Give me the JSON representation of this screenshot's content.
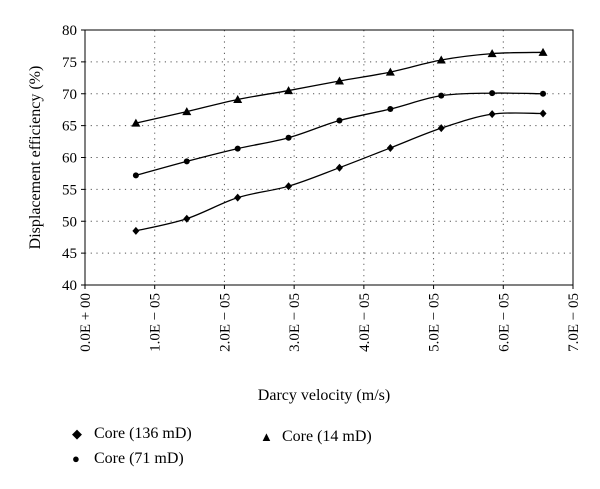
{
  "chart_data": {
    "type": "line",
    "title": "",
    "xlabel": "Darcy velocity (m/s)",
    "ylabel": "Displacement efficiency (%)",
    "xlim": [
      0,
      7e-05
    ],
    "ylim": [
      40,
      80
    ],
    "x_ticks": [
      "0.0E + 00",
      "1.0E − 05",
      "2.0E − 05",
      "3.0E − 05",
      "4.0E − 05",
      "5.0E − 05",
      "6.0E − 05",
      "7.0E − 05"
    ],
    "y_ticks": [
      "40",
      "45",
      "50",
      "55",
      "60",
      "65",
      "70",
      "75",
      "80"
    ],
    "grid": "horizontal dotted",
    "legend_position": "bottom",
    "series": [
      {
        "name": "Core (136 mD)",
        "marker": "diamond",
        "x": [
          7.3e-06,
          1.46e-05,
          2.19e-05,
          2.92e-05,
          3.65e-05,
          4.38e-05,
          5.11e-05,
          5.84e-05,
          6.57e-05
        ],
        "values": [
          48.5,
          50.4,
          53.7,
          55.5,
          58.4,
          61.5,
          64.6,
          66.8,
          66.9
        ]
      },
      {
        "name": "Core (71 mD)",
        "marker": "circle",
        "x": [
          7.3e-06,
          1.46e-05,
          2.19e-05,
          2.92e-05,
          3.65e-05,
          4.38e-05,
          5.11e-05,
          5.84e-05,
          6.57e-05
        ],
        "values": [
          57.2,
          59.4,
          61.4,
          63.1,
          65.8,
          67.6,
          69.7,
          70.1,
          70.0
        ]
      },
      {
        "name": "Core (14 mD)",
        "marker": "triangle",
        "x": [
          7.3e-06,
          1.46e-05,
          2.19e-05,
          2.92e-05,
          3.65e-05,
          4.38e-05,
          5.11e-05,
          5.84e-05,
          6.57e-05
        ],
        "values": [
          65.4,
          67.2,
          69.1,
          70.5,
          72.0,
          73.4,
          75.3,
          76.3,
          76.5
        ]
      }
    ]
  },
  "legend": {
    "items": [
      {
        "label": "Core (136 mD)",
        "marker": "◆"
      },
      {
        "label": "Core (71 mD)",
        "marker": "●"
      },
      {
        "label": "Core (14 mD)",
        "marker": "▲"
      }
    ]
  }
}
